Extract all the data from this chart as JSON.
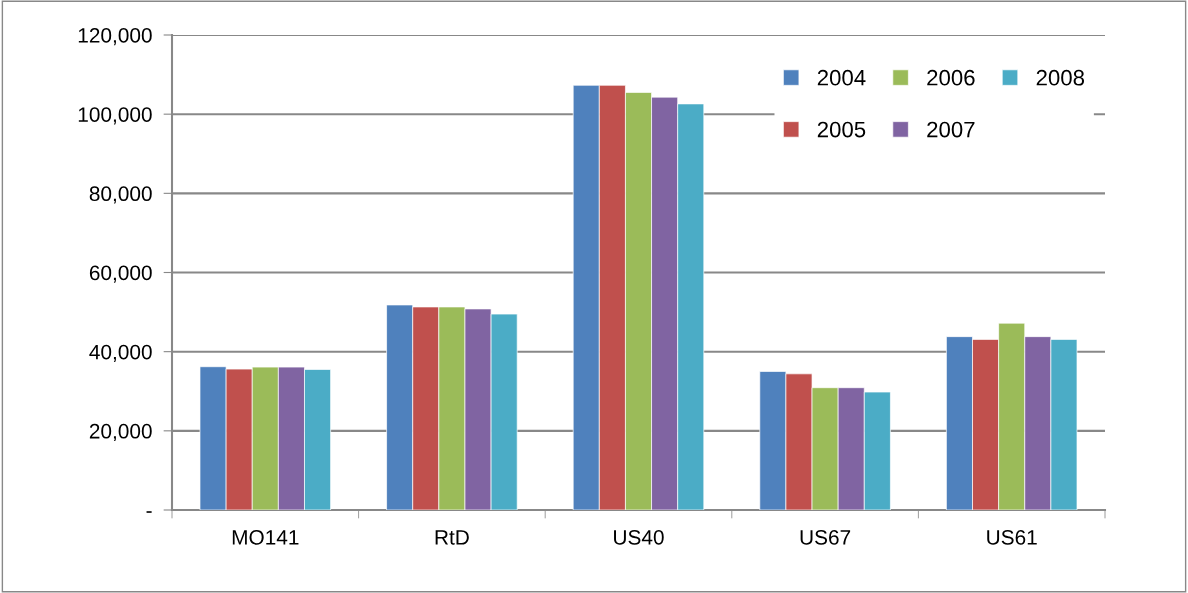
{
  "chart_data": {
    "type": "bar",
    "categories": [
      "MO141",
      "RtD",
      "US40",
      "US67",
      "US61"
    ],
    "series": [
      {
        "name": "2004",
        "color": "#4f81bd",
        "values": [
          36200,
          51800,
          107300,
          35000,
          43800
        ]
      },
      {
        "name": "2005",
        "color": "#c0504d",
        "values": [
          35600,
          51300,
          107300,
          34400,
          43100
        ]
      },
      {
        "name": "2006",
        "color": "#9bbb59",
        "values": [
          36100,
          51300,
          105500,
          30900,
          47200
        ]
      },
      {
        "name": "2007",
        "color": "#8064a2",
        "values": [
          36100,
          50800,
          104300,
          30900,
          43800
        ]
      },
      {
        "name": "2008",
        "color": "#4bacc6",
        "values": [
          35500,
          49500,
          102600,
          29800,
          43100
        ]
      }
    ],
    "ylim": [
      0,
      120000
    ],
    "yticks": [
      {
        "value": 0,
        "label": "-"
      },
      {
        "value": 20000,
        "label": "20,000"
      },
      {
        "value": 40000,
        "label": "40,000"
      },
      {
        "value": 60000,
        "label": "60,000"
      },
      {
        "value": 80000,
        "label": "80,000"
      },
      {
        "value": 100000,
        "label": "100,000"
      },
      {
        "value": 120000,
        "label": "120,000"
      }
    ],
    "grid": "y",
    "legend": "top right"
  }
}
